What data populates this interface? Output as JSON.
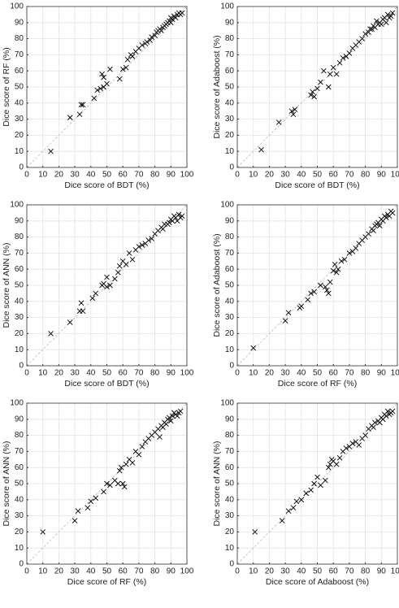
{
  "chart_data": [
    {
      "type": "scatter",
      "xlabel": "Dice score of BDT (%)",
      "ylabel": "Dice score of RF (%)",
      "xlim": [
        0,
        100
      ],
      "ylim": [
        0,
        100
      ],
      "xticks": [
        0,
        10,
        20,
        30,
        40,
        50,
        60,
        70,
        80,
        90,
        100
      ],
      "yticks": [
        0,
        10,
        20,
        30,
        40,
        50,
        60,
        70,
        80,
        90,
        100
      ],
      "grid": true,
      "color": "#000000",
      "x": [
        15,
        27,
        33,
        34,
        35,
        42,
        44,
        46,
        48,
        50,
        47,
        48,
        52,
        58,
        60,
        62,
        63,
        65,
        66,
        68,
        70,
        72,
        74,
        75,
        77,
        78,
        80,
        81,
        82,
        83,
        84,
        85,
        86,
        87,
        88,
        89,
        90,
        90,
        91,
        92,
        93,
        94,
        95,
        96,
        97
      ],
      "y": [
        10,
        31,
        33,
        39,
        39,
        43,
        48,
        49,
        50,
        52,
        58,
        56,
        61,
        55,
        61,
        62,
        67,
        70,
        69,
        72,
        74,
        76,
        77,
        78,
        79,
        81,
        82,
        84,
        85,
        86,
        85,
        87,
        88,
        89,
        90,
        91,
        90,
        93,
        92,
        94,
        93,
        95,
        96,
        95,
        96
      ]
    },
    {
      "type": "scatter",
      "xlabel": "Dice score of BDT (%)",
      "ylabel": "Dice score of Adaboost (%)",
      "xlim": [
        0,
        100
      ],
      "ylim": [
        0,
        100
      ],
      "xticks": [
        0,
        10,
        20,
        30,
        40,
        50,
        60,
        70,
        80,
        90,
        100
      ],
      "yticks": [
        0,
        10,
        20,
        30,
        40,
        50,
        60,
        70,
        80,
        90,
        100
      ],
      "grid": true,
      "color": "#000000",
      "x": [
        15,
        26,
        34,
        35,
        36,
        46,
        47,
        48,
        50,
        52,
        54,
        57,
        58,
        60,
        62,
        64,
        66,
        68,
        70,
        72,
        74,
        76,
        78,
        80,
        82,
        84,
        85,
        86,
        88,
        89,
        90,
        91,
        92,
        93,
        94,
        95,
        96,
        97,
        87,
        83
      ],
      "y": [
        11,
        28,
        35,
        33,
        36,
        45,
        47,
        44,
        49,
        53,
        60,
        50,
        58,
        62,
        58,
        65,
        68,
        69,
        71,
        74,
        76,
        78,
        80,
        83,
        84,
        86,
        88,
        87,
        89,
        90,
        89,
        92,
        93,
        90,
        95,
        93,
        94,
        96,
        91,
        86
      ]
    },
    {
      "type": "scatter",
      "xlabel": "Dice score of BDT (%)",
      "ylabel": "Dice score of ANN (%)",
      "xlim": [
        0,
        100
      ],
      "ylim": [
        0,
        100
      ],
      "xticks": [
        0,
        10,
        20,
        30,
        40,
        50,
        60,
        70,
        80,
        90,
        100
      ],
      "yticks": [
        0,
        10,
        20,
        30,
        40,
        50,
        60,
        70,
        80,
        90,
        100
      ],
      "grid": true,
      "color": "#000000",
      "x": [
        15,
        27,
        34,
        35,
        33,
        41,
        43,
        47,
        48,
        50,
        50,
        52,
        55,
        57,
        58,
        60,
        62,
        64,
        66,
        68,
        70,
        72,
        74,
        76,
        78,
        80,
        82,
        84,
        85,
        86,
        88,
        89,
        90,
        91,
        92,
        93,
        94,
        95,
        96,
        97
      ],
      "y": [
        20,
        27,
        39,
        34,
        34,
        42,
        45,
        50,
        51,
        49,
        55,
        50,
        54,
        58,
        62,
        65,
        63,
        70,
        66,
        72,
        74,
        75,
        76,
        78,
        79,
        82,
        84,
        86,
        85,
        88,
        88,
        89,
        91,
        90,
        93,
        92,
        90,
        94,
        92,
        93
      ]
    },
    {
      "type": "scatter",
      "xlabel": "Dice score of RF (%)",
      "ylabel": "Dice score of Adaboost (%)",
      "xlim": [
        0,
        100
      ],
      "ylim": [
        0,
        100
      ],
      "xticks": [
        0,
        10,
        20,
        30,
        40,
        50,
        60,
        70,
        80,
        90,
        100
      ],
      "yticks": [
        0,
        10,
        20,
        30,
        40,
        50,
        60,
        70,
        80,
        90,
        100
      ],
      "grid": true,
      "color": "#000000",
      "x": [
        10,
        30,
        32,
        39,
        40,
        44,
        46,
        48,
        52,
        55,
        57,
        58,
        60,
        61,
        63,
        65,
        67,
        70,
        72,
        74,
        76,
        78,
        80,
        82,
        84,
        85,
        86,
        87,
        88,
        89,
        90,
        91,
        92,
        93,
        94,
        95,
        96,
        97,
        56,
        62
      ],
      "y": [
        11,
        28,
        33,
        36,
        37,
        41,
        45,
        46,
        50,
        49,
        45,
        52,
        59,
        63,
        60,
        65,
        66,
        70,
        71,
        73,
        76,
        78,
        80,
        82,
        85,
        84,
        87,
        88,
        89,
        87,
        91,
        90,
        93,
        92,
        94,
        93,
        96,
        95,
        47,
        58
      ]
    },
    {
      "type": "scatter",
      "xlabel": "Dice score of RF (%)",
      "ylabel": "Dice score of ANN (%)",
      "xlim": [
        0,
        100
      ],
      "ylim": [
        0,
        100
      ],
      "xticks": [
        0,
        10,
        20,
        30,
        40,
        50,
        60,
        70,
        80,
        90,
        100
      ],
      "yticks": [
        0,
        10,
        20,
        30,
        40,
        50,
        60,
        70,
        80,
        90,
        100
      ],
      "grid": true,
      "color": "#000000",
      "x": [
        10,
        30,
        32,
        38,
        40,
        43,
        48,
        50,
        52,
        55,
        57,
        58,
        59,
        60,
        62,
        64,
        66,
        68,
        70,
        72,
        74,
        76,
        78,
        80,
        82,
        84,
        85,
        86,
        87,
        88,
        89,
        90,
        91,
        92,
        93,
        94,
        95,
        96,
        61,
        83
      ],
      "y": [
        20,
        27,
        33,
        35,
        39,
        41,
        45,
        50,
        49,
        52,
        50,
        58,
        60,
        50,
        62,
        65,
        63,
        70,
        68,
        73,
        76,
        78,
        80,
        82,
        84,
        86,
        85,
        88,
        87,
        90,
        91,
        89,
        92,
        94,
        93,
        92,
        94,
        95,
        48,
        79
      ]
    },
    {
      "type": "scatter",
      "xlabel": "Dice score of Adaboost (%)",
      "ylabel": "Dice score of ANN (%)",
      "xlim": [
        0,
        100
      ],
      "ylim": [
        0,
        100
      ],
      "xticks": [
        0,
        10,
        20,
        30,
        40,
        50,
        60,
        70,
        80,
        90,
        100
      ],
      "yticks": [
        0,
        10,
        20,
        30,
        40,
        50,
        60,
        70,
        80,
        90,
        100
      ],
      "grid": true,
      "color": "#000000",
      "x": [
        11,
        28,
        32,
        35,
        37,
        40,
        43,
        46,
        48,
        50,
        52,
        55,
        57,
        58,
        59,
        60,
        62,
        64,
        66,
        68,
        70,
        72,
        74,
        76,
        78,
        80,
        82,
        84,
        85,
        86,
        88,
        89,
        90,
        91,
        92,
        93,
        94,
        95,
        96,
        97
      ],
      "y": [
        20,
        27,
        33,
        35,
        39,
        40,
        44,
        46,
        50,
        54,
        49,
        52,
        60,
        62,
        65,
        64,
        62,
        66,
        70,
        72,
        73,
        75,
        76,
        74,
        78,
        80,
        84,
        86,
        85,
        88,
        89,
        88,
        91,
        90,
        93,
        92,
        95,
        93,
        94,
        95
      ]
    }
  ]
}
